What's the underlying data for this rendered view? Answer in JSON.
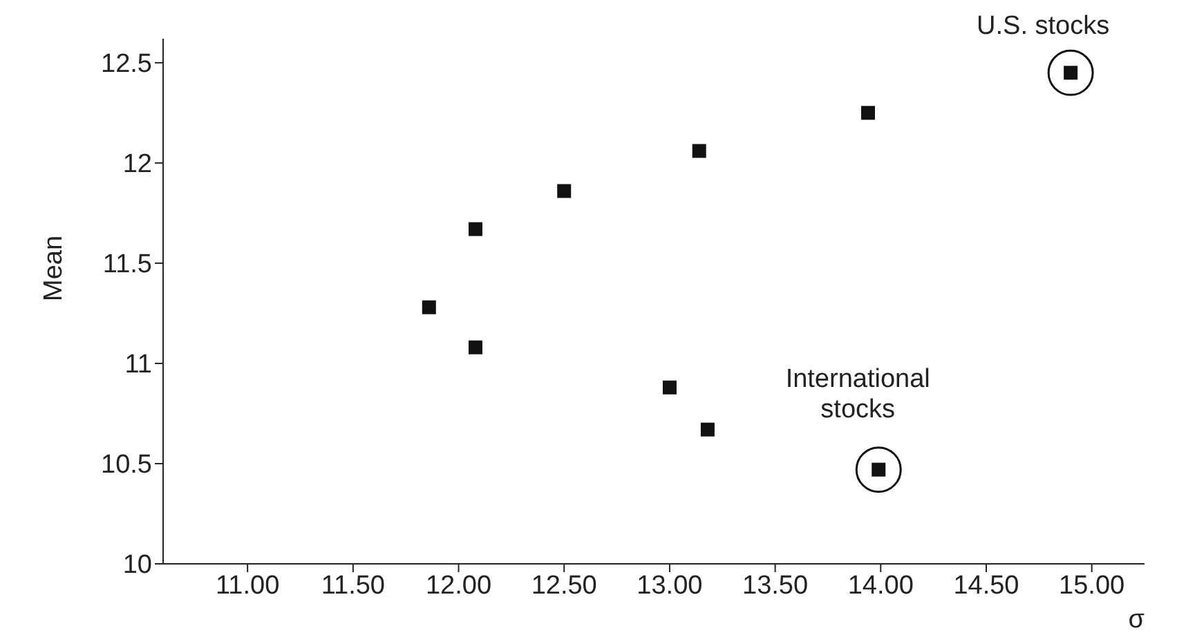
{
  "chart_data": {
    "type": "scatter",
    "xlabel": "σ",
    "ylabel": "Mean",
    "x": [
      11.86,
      12.08,
      12.08,
      12.5,
      13.0,
      13.14,
      13.18,
      13.94,
      13.99,
      14.9
    ],
    "values": [
      11.28,
      11.67,
      11.08,
      11.86,
      10.88,
      12.06,
      10.67,
      12.25,
      10.47,
      12.45
    ],
    "color": "#111111",
    "marker": "square",
    "grid": false,
    "legend": false,
    "xlim": [
      10.6,
      15.25
    ],
    "ylim": [
      10,
      12.62
    ],
    "xticks": [
      {
        "value": 11,
        "label": "11.00"
      },
      {
        "value": 11.5,
        "label": "11.50"
      },
      {
        "value": 12,
        "label": "12.00"
      },
      {
        "value": 12.5,
        "label": "12.50"
      },
      {
        "value": 13,
        "label": "13.00"
      },
      {
        "value": 13.5,
        "label": "13.50"
      },
      {
        "value": 14,
        "label": "14.00"
      },
      {
        "value": 14.5,
        "label": "14.50"
      },
      {
        "value": 15,
        "label": "15.00"
      }
    ],
    "yticks": [
      10,
      10.5,
      11,
      11.5,
      12,
      12.5
    ],
    "annotations": [
      {
        "text": "U.S. stocks",
        "x": 14.9,
        "y": 12.45
      },
      {
        "text": "International stocks",
        "x": 13.99,
        "y": 10.47
      }
    ]
  }
}
